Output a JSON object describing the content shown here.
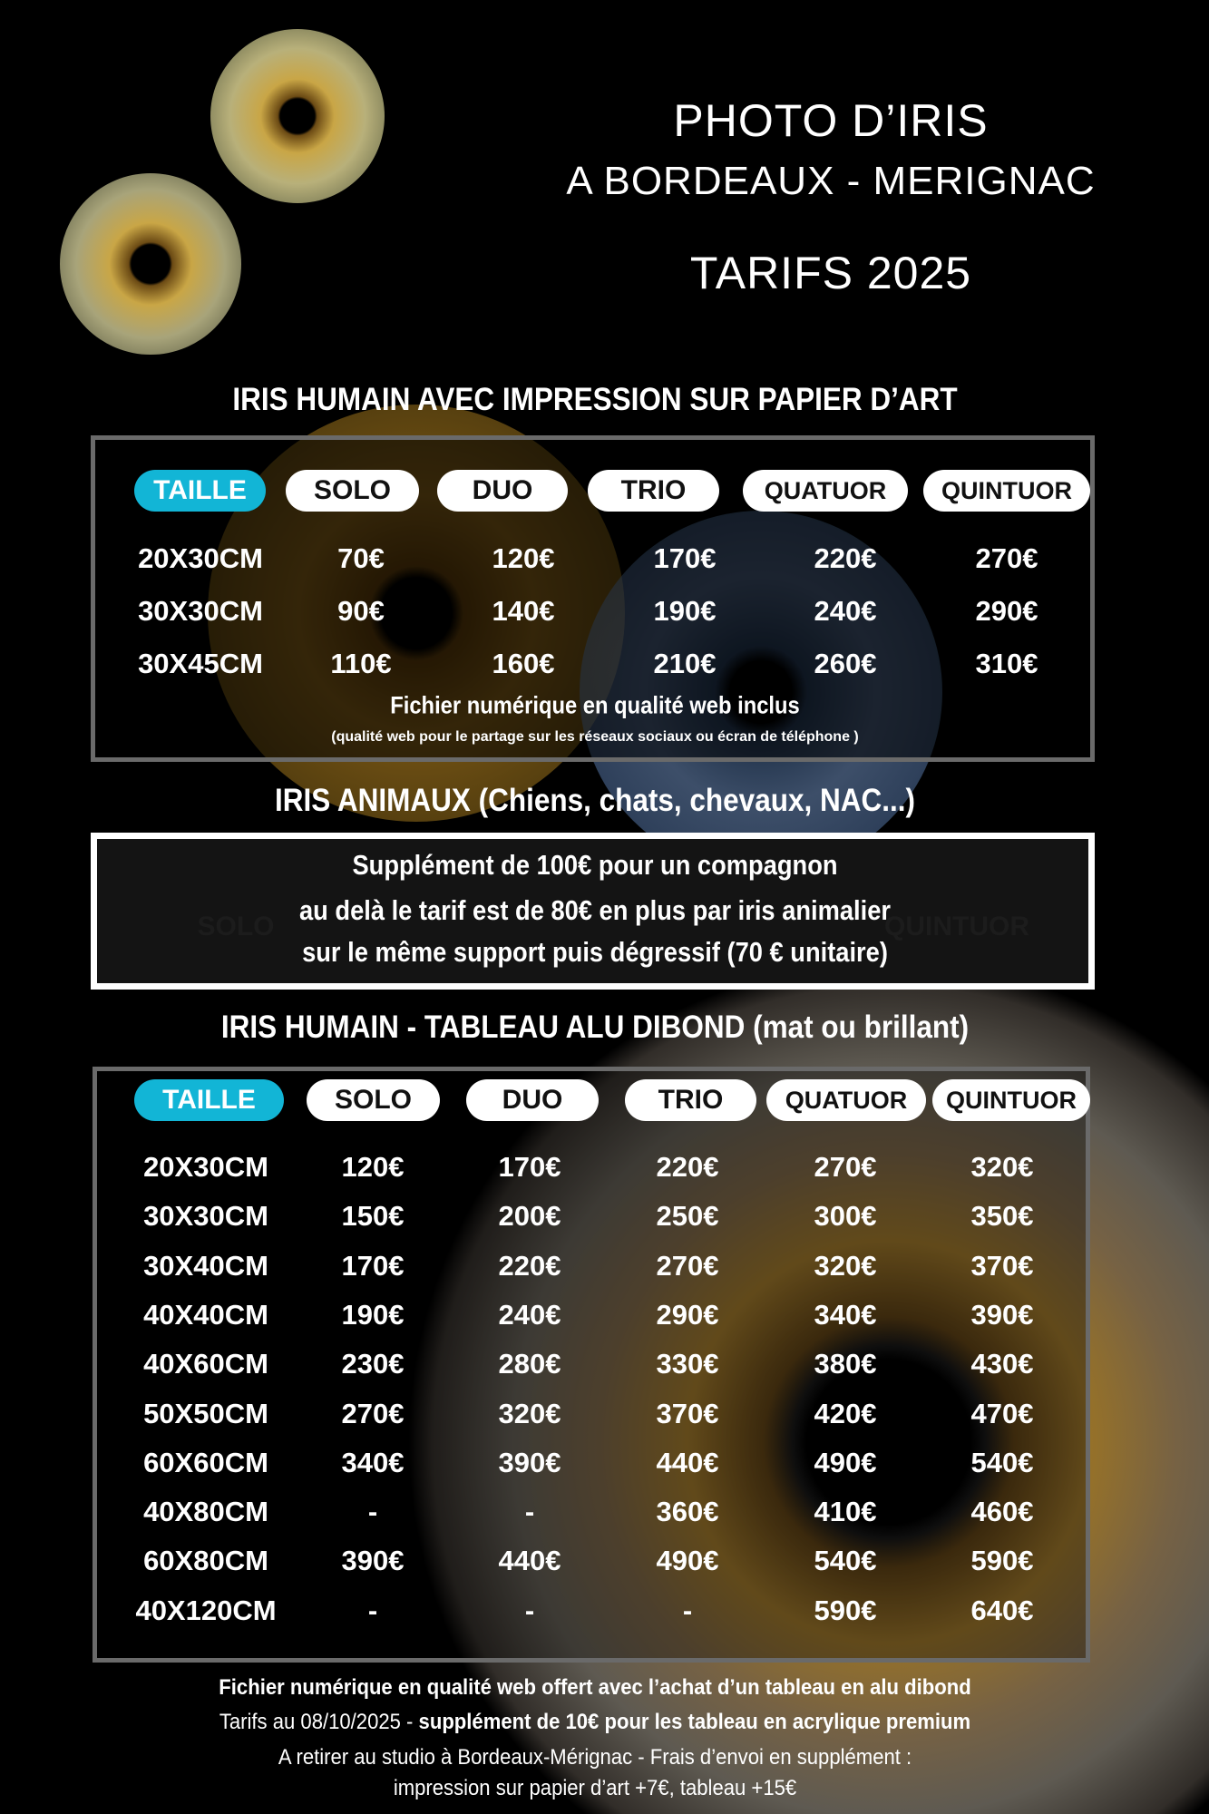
{
  "header": {
    "title": "PHOTO D’IRIS",
    "subtitle": "A BORDEAUX - MERIGNAC",
    "tarifs": "TARIFS 2025"
  },
  "colors": {
    "accent": "#12b5d6",
    "background": "#000000"
  },
  "section1": {
    "title": "IRIS HUMAIN AVEC IMPRESSION SUR PAPIER D’ART",
    "headers": [
      "TAILLE",
      "SOLO",
      "DUO",
      "TRIO",
      "QUATUOR",
      "QUINTUOR"
    ],
    "rows": [
      [
        "20X30CM",
        "70€",
        "120€",
        "170€",
        "220€",
        "270€"
      ],
      [
        "30X30CM",
        "90€",
        "140€",
        "190€",
        "240€",
        "290€"
      ],
      [
        "30X45CM",
        "110€",
        "160€",
        "210€",
        "260€",
        "310€"
      ]
    ],
    "note": "Fichier numérique en qualité web  inclus",
    "subnote": "(qualité web pour le partage sur les réseaux sociaux ou écran de téléphone )"
  },
  "section2": {
    "title": "IRIS ANIMAUX (Chiens, chats, chevaux, NAC...)",
    "lines": [
      "Supplément de 100€ pour un compagnon",
      "au delà le tarif est de 80€ en plus par iris animalier",
      "sur le même support puis dégressif (70 € unitaire)"
    ],
    "ghost": [
      "SOLO",
      "QUINTUOR"
    ]
  },
  "section3": {
    "title": "IRIS HUMAIN - TABLEAU ALU DIBOND (mat ou brillant)",
    "headers": [
      "TAILLE",
      "SOLO",
      "DUO",
      "TRIO",
      "QUATUOR",
      "QUINTUOR"
    ],
    "rows": [
      [
        "20X30CM",
        "120€",
        "170€",
        "220€",
        "270€",
        "320€"
      ],
      [
        "30X30CM",
        "150€",
        "200€",
        "250€",
        "300€",
        "350€"
      ],
      [
        "30X40CM",
        "170€",
        "220€",
        "270€",
        "320€",
        "370€"
      ],
      [
        "40X40CM",
        "190€",
        "240€",
        "290€",
        "340€",
        "390€"
      ],
      [
        "40X60CM",
        "230€",
        "280€",
        "330€",
        "380€",
        "430€"
      ],
      [
        "50X50CM",
        "270€",
        "320€",
        "370€",
        "420€",
        "470€"
      ],
      [
        "60X60CM",
        "340€",
        "390€",
        "440€",
        "490€",
        "540€"
      ],
      [
        "40X80CM",
        "-",
        "-",
        "360€",
        "410€",
        "460€"
      ],
      [
        "60X80CM",
        "390€",
        "440€",
        "490€",
        "540€",
        "590€"
      ],
      [
        "40X120CM",
        "-",
        "-",
        "-",
        "590€",
        "640€"
      ]
    ]
  },
  "footer": {
    "line1": "Fichier numérique en qualité web offert avec l’achat d’un tableau en alu dibond",
    "line2_date": "Tarifs au 08/10/2025 - ",
    "line2_bold": "supplément de 10€ pour les tableau en acrylique premium",
    "line3": "A retirer au studio à Bordeaux-Mérignac - Frais d’envoi en supplément :",
    "line4": "impression sur papier d’art +7€, tableau +15€"
  }
}
